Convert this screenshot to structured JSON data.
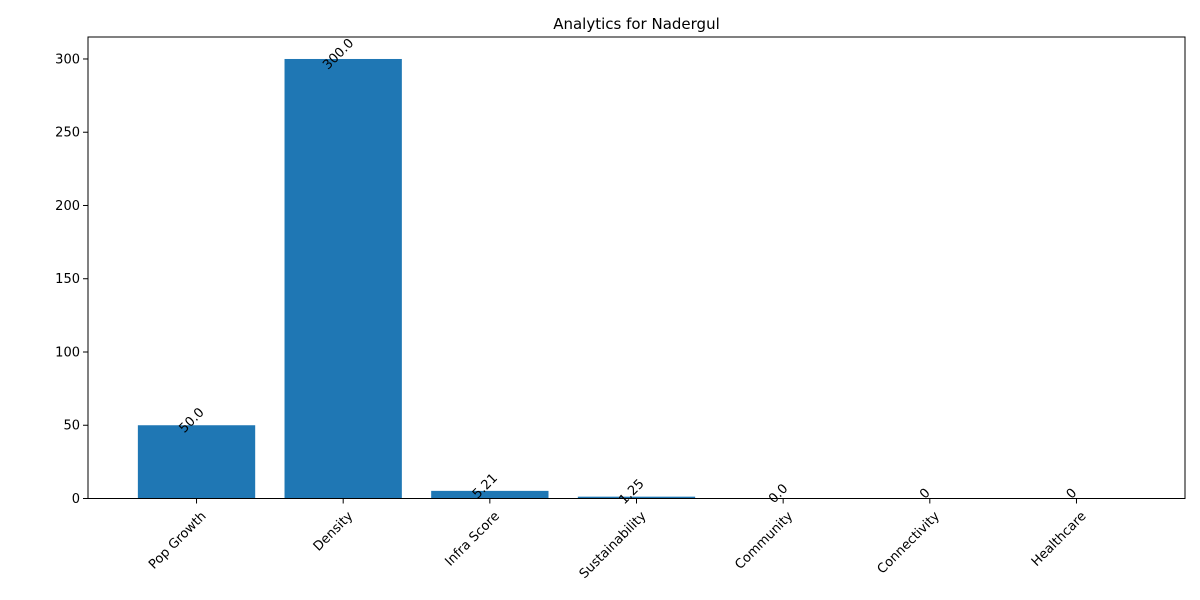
{
  "chart_data": {
    "type": "bar",
    "title": "Analytics for Nadergul",
    "xlabel": "",
    "ylabel": "",
    "categories": [
      "Pop Growth",
      "Density",
      "Infra Score",
      "Sustainability",
      "Community",
      "Connectivity",
      "Healthcare"
    ],
    "values": [
      50.0,
      300.0,
      5.21,
      1.25,
      0.0,
      0,
      0
    ],
    "data_labels": [
      "50.0",
      "300.0",
      "5.21",
      "1.25",
      "0.0",
      "0",
      "0"
    ],
    "ylim": [
      0,
      315
    ],
    "yticks": [
      0,
      50,
      100,
      150,
      200,
      250,
      300
    ],
    "grid": false,
    "legend": "none",
    "bar_color": "#1f77b4",
    "x_tick_rotation": 45,
    "data_label_rotation": 45
  }
}
